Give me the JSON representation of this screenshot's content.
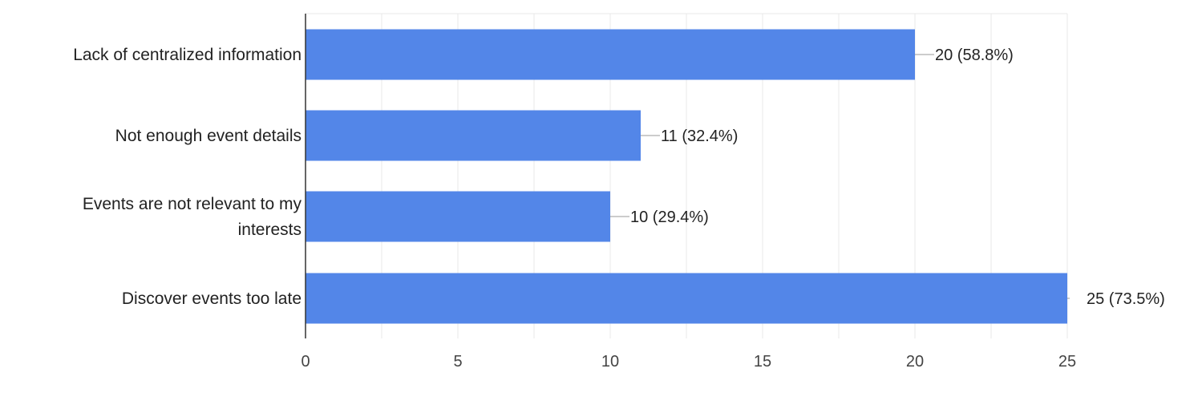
{
  "chart_data": {
    "type": "bar",
    "orientation": "horizontal",
    "title": "",
    "xlabel": "",
    "ylabel": "",
    "categories": [
      "Lack of centralized information",
      "Not enough event details",
      "Events are not relevant to my interests",
      "Discover events too late"
    ],
    "values": [
      20,
      11,
      10,
      25
    ],
    "data_labels": [
      "20 (58.8%)",
      "11 (32.4%)",
      "10 (29.4%)",
      "25 (73.5%)"
    ],
    "xlim": [
      0,
      25
    ],
    "xticks": [
      0,
      5,
      10,
      15,
      20,
      25
    ],
    "grid": true,
    "legend": "none",
    "colors": {
      "bar": "#5386e8",
      "grid": "#e9e9e9",
      "axis": "#333333",
      "text": "#222222",
      "tick_text": "#444444",
      "leader": "#999999"
    }
  }
}
